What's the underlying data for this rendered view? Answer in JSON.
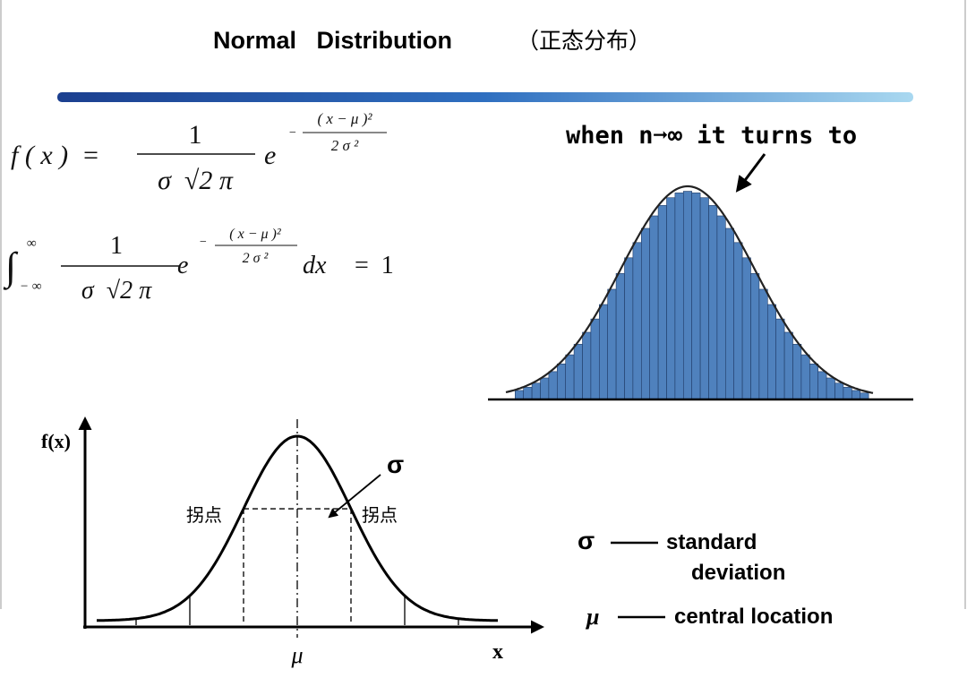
{
  "header": {
    "title": "Normal   Distribution",
    "subtitle": "（正态分布）"
  },
  "density_formula": {
    "lhs": "f ( x )  =",
    "numerator": "1",
    "denominator": "σ  √2 π",
    "base": "e",
    "exponent_sign": "−",
    "exponent_numerator": "( x − μ )²",
    "exponent_denominator": "2 σ ²"
  },
  "integral_formula": {
    "integral": "∫",
    "upper": "∞",
    "lower": "− ∞",
    "numerator": "1",
    "denominator": "σ  √2 π",
    "base": "e",
    "exponent_sign": "−",
    "exponent_numerator": "( x − μ )²",
    "exponent_denominator": "2 σ ²",
    "differential": "dx",
    "rhs": "=  1"
  },
  "histogram": {
    "annotation": "when n➞∞ it turns to"
  },
  "curve_diagram": {
    "y_label": "f(x)",
    "x_label": "x",
    "mean": "μ",
    "sigma": "σ",
    "inflection_left": "拐点",
    "inflection_right": "拐点"
  },
  "legend": {
    "sigma_symbol": "σ",
    "sigma_text_1": "standard",
    "sigma_text_2": "deviation",
    "mu_symbol": "μ",
    "mu_text": "central location"
  }
}
